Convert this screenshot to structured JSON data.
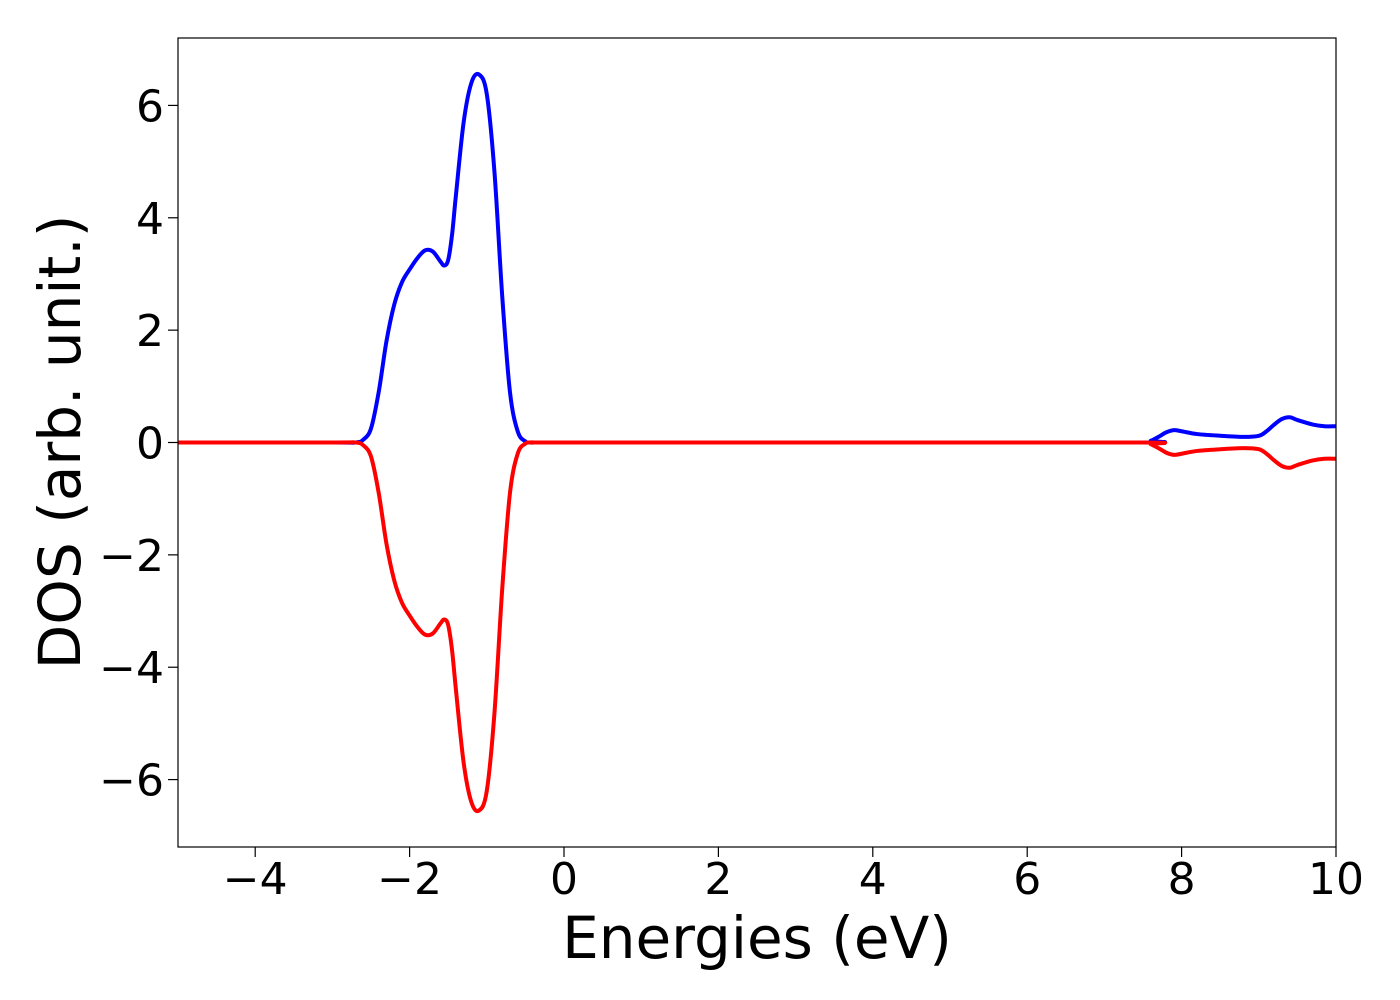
{
  "chart_data": {
    "type": "line",
    "title": "",
    "xlabel": "Energies (eV)",
    "ylabel": "DOS (arb. unit.)",
    "xlim": [
      -5,
      10
    ],
    "ylim": [
      -7.2,
      7.2
    ],
    "x_ticks": [
      -4,
      -2,
      0,
      2,
      4,
      6,
      8,
      10
    ],
    "y_ticks": [
      -6,
      -4,
      -2,
      0,
      2,
      4,
      6
    ],
    "grid": false,
    "legend": "none",
    "series": [
      {
        "color": "#0000ff",
        "points": [
          [
            -5.0,
            0.0
          ],
          [
            -3.0,
            0.0
          ],
          [
            -2.7,
            0.0
          ],
          [
            -2.6,
            0.05
          ],
          [
            -2.5,
            0.25
          ],
          [
            -2.4,
            0.9
          ],
          [
            -2.3,
            1.8
          ],
          [
            -2.2,
            2.45
          ],
          [
            -2.1,
            2.85
          ],
          [
            -2.0,
            3.08
          ],
          [
            -1.9,
            3.28
          ],
          [
            -1.8,
            3.42
          ],
          [
            -1.7,
            3.4
          ],
          [
            -1.6,
            3.22
          ],
          [
            -1.55,
            3.15
          ],
          [
            -1.5,
            3.25
          ],
          [
            -1.45,
            3.7
          ],
          [
            -1.4,
            4.4
          ],
          [
            -1.3,
            5.7
          ],
          [
            -1.2,
            6.4
          ],
          [
            -1.1,
            6.55
          ],
          [
            -1.0,
            6.2
          ],
          [
            -0.9,
            4.8
          ],
          [
            -0.8,
            2.6
          ],
          [
            -0.7,
            0.9
          ],
          [
            -0.6,
            0.2
          ],
          [
            -0.5,
            0.02
          ],
          [
            -0.4,
            0.0
          ],
          [
            0.0,
            0.0
          ],
          [
            4.0,
            0.0
          ],
          [
            7.5,
            0.0
          ],
          [
            7.6,
            0.03
          ],
          [
            7.7,
            0.1
          ],
          [
            7.8,
            0.18
          ],
          [
            7.9,
            0.22
          ],
          [
            8.0,
            0.2
          ],
          [
            8.2,
            0.15
          ],
          [
            8.5,
            0.12
          ],
          [
            8.8,
            0.1
          ],
          [
            9.0,
            0.12
          ],
          [
            9.1,
            0.2
          ],
          [
            9.2,
            0.32
          ],
          [
            9.3,
            0.42
          ],
          [
            9.4,
            0.45
          ],
          [
            9.5,
            0.4
          ],
          [
            9.7,
            0.32
          ],
          [
            9.85,
            0.29
          ],
          [
            10.0,
            0.29
          ]
        ]
      },
      {
        "color": "#ff0000",
        "points": [
          [
            -5.0,
            0.0
          ],
          [
            -3.0,
            0.0
          ],
          [
            -2.7,
            0.0
          ],
          [
            -2.6,
            -0.05
          ],
          [
            -2.5,
            -0.25
          ],
          [
            -2.4,
            -0.9
          ],
          [
            -2.3,
            -1.8
          ],
          [
            -2.2,
            -2.45
          ],
          [
            -2.1,
            -2.85
          ],
          [
            -2.0,
            -3.08
          ],
          [
            -1.9,
            -3.28
          ],
          [
            -1.8,
            -3.42
          ],
          [
            -1.7,
            -3.4
          ],
          [
            -1.6,
            -3.22
          ],
          [
            -1.55,
            -3.15
          ],
          [
            -1.5,
            -3.25
          ],
          [
            -1.45,
            -3.7
          ],
          [
            -1.4,
            -4.4
          ],
          [
            -1.3,
            -5.7
          ],
          [
            -1.2,
            -6.4
          ],
          [
            -1.1,
            -6.55
          ],
          [
            -1.0,
            -6.2
          ],
          [
            -0.9,
            -4.8
          ],
          [
            -0.8,
            -2.6
          ],
          [
            -0.7,
            -0.9
          ],
          [
            -0.6,
            -0.2
          ],
          [
            -0.5,
            -0.02
          ],
          [
            -0.4,
            0.0
          ],
          [
            0.0,
            0.0
          ],
          [
            4.0,
            0.0
          ],
          [
            7.5,
            0.0
          ],
          [
            7.6,
            -0.03
          ],
          [
            7.7,
            -0.1
          ],
          [
            7.8,
            -0.18
          ],
          [
            7.9,
            -0.22
          ],
          [
            8.0,
            -0.2
          ],
          [
            8.2,
            -0.15
          ],
          [
            8.5,
            -0.12
          ],
          [
            8.8,
            -0.1
          ],
          [
            9.0,
            -0.12
          ],
          [
            9.1,
            -0.2
          ],
          [
            9.2,
            -0.32
          ],
          [
            9.3,
            -0.42
          ],
          [
            9.4,
            -0.45
          ],
          [
            9.5,
            -0.4
          ],
          [
            9.7,
            -0.32
          ],
          [
            9.85,
            -0.29
          ],
          [
            10.0,
            -0.29
          ]
        ]
      }
    ]
  }
}
